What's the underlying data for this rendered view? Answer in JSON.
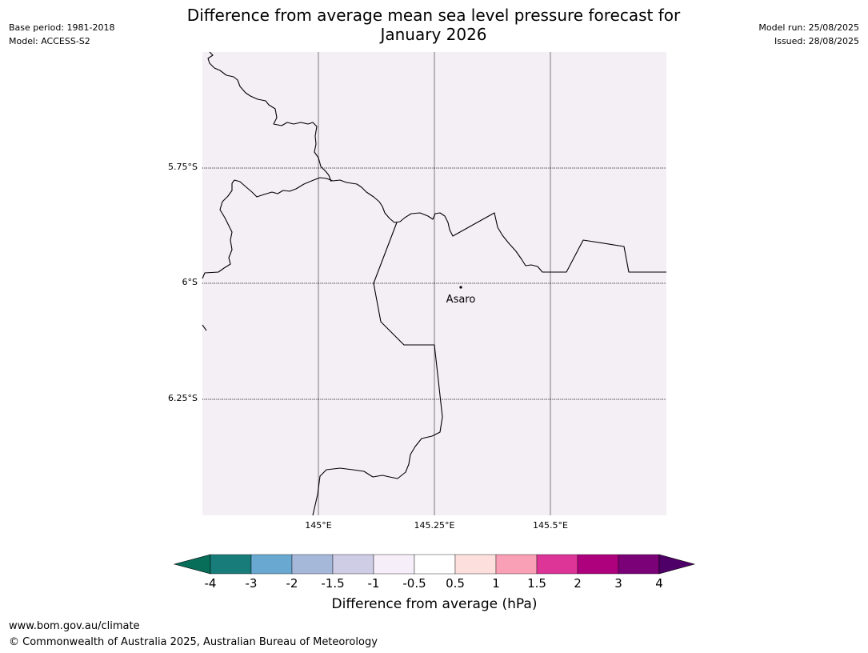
{
  "header": {
    "title_line1": "Difference from average mean sea level pressure forecast for",
    "title_line2": "January 2026",
    "base_period": "Base period: 1981-2018",
    "model": "Model: ACCESS-S2",
    "model_run": "Model run: 25/08/2025",
    "issued": "Issued: 28/08/2025"
  },
  "map": {
    "background_color": "#f4eef5",
    "lat_labels": [
      "5.75°S",
      "6°S",
      "6.25°S"
    ],
    "lon_labels": [
      "145°E",
      "145.25°E",
      "145.5°E"
    ],
    "place": {
      "name": "Asaro"
    }
  },
  "colorbar": {
    "label": "Difference from average (hPa)",
    "ticks": [
      "-4",
      "-3",
      "-2",
      "-1.5",
      "-1",
      "-0.5",
      "0.5",
      "1",
      "1.5",
      "2",
      "3",
      "4"
    ],
    "colors": [
      "#187c7a",
      "#69a8d0",
      "#a5b8da",
      "#cfcde6",
      "#f6eef8",
      "#ffffff",
      "#fde0dd",
      "#f9a0b6",
      "#dd3497",
      "#ae017e",
      "#7a0177"
    ],
    "under_color": "#076e5a",
    "over_color": "#4f0068"
  },
  "footer": {
    "url": "www.bom.gov.au/climate",
    "copyright": "© Commonwealth of Australia 2025, Australian Bureau of Meteorology"
  }
}
